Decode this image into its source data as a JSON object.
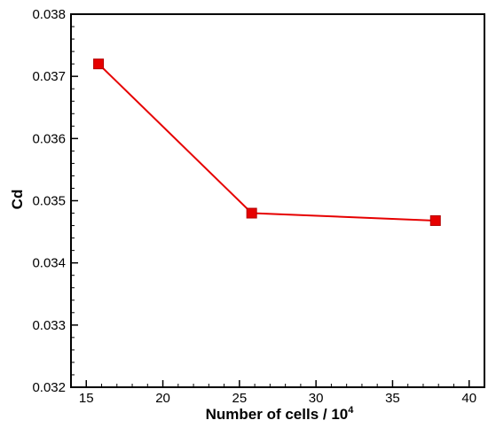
{
  "chart_data": {
    "type": "line",
    "title": "",
    "xlabel": "Number of cells / 10",
    "xlabel_superscript": "4",
    "ylabel": "Cd",
    "xlim": [
      14,
      41
    ],
    "ylim": [
      0.032,
      0.038
    ],
    "x_ticks": [
      15,
      20,
      25,
      30,
      35,
      40
    ],
    "y_ticks": [
      0.032,
      0.033,
      0.034,
      0.035,
      0.036,
      0.037,
      0.038
    ],
    "x_tick_labels": [
      "15",
      "20",
      "25",
      "30",
      "35",
      "40"
    ],
    "y_tick_labels": [
      "0.032",
      "0.033",
      "0.034",
      "0.035",
      "0.036",
      "0.037",
      "0.038"
    ],
    "grid": false,
    "series": [
      {
        "x": [
          15.8,
          25.8,
          37.8
        ],
        "y": [
          0.0372,
          0.0348,
          0.03468
        ],
        "color": "#e60000",
        "marker": "square"
      }
    ]
  }
}
